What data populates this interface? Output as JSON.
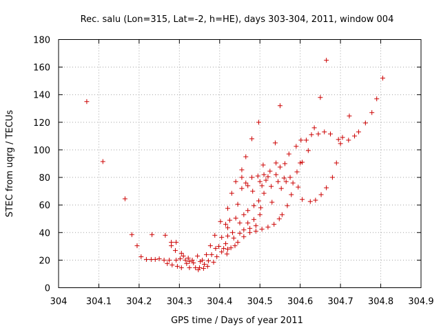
{
  "chart_data": {
    "type": "scatter",
    "title": "Rec. salu (Lon=315, Lat=-2, h=HE), days 303-304, 2011, window 004",
    "xlabel": "GPS time / Days of year 2011",
    "ylabel": "STEC from uqrg / TECUs",
    "xlim": [
      304,
      304.9
    ],
    "ylim": [
      0,
      180
    ],
    "xticks": [
      "304",
      "304.1",
      "304.2",
      "304.3",
      "304.4",
      "304.5",
      "304.6",
      "304.7",
      "304.8",
      "304.9"
    ],
    "yticks": [
      "0",
      "20",
      "40",
      "60",
      "80",
      "100",
      "120",
      "140",
      "160",
      "180"
    ],
    "grid": true,
    "legend": "none",
    "marker": "plus",
    "color": "#cc0000",
    "points": [
      [
        304.07,
        135
      ],
      [
        304.11,
        91.5
      ],
      [
        304.165,
        64.5
      ],
      [
        304.182,
        38.5
      ],
      [
        304.195,
        30.5
      ],
      [
        304.205,
        22.5
      ],
      [
        304.218,
        20.5
      ],
      [
        304.23,
        20.5
      ],
      [
        304.232,
        38.5
      ],
      [
        304.24,
        20.5
      ],
      [
        304.25,
        21
      ],
      [
        304.262,
        20
      ],
      [
        304.265,
        38
      ],
      [
        304.27,
        17.5
      ],
      [
        304.275,
        20
      ],
      [
        304.28,
        30.5
      ],
      [
        304.28,
        33
      ],
      [
        304.282,
        16.5
      ],
      [
        304.29,
        27
      ],
      [
        304.292,
        20
      ],
      [
        304.292,
        33
      ],
      [
        304.295,
        15.5
      ],
      [
        304.302,
        21
      ],
      [
        304.305,
        25
      ],
      [
        304.305,
        14.5
      ],
      [
        304.31,
        23
      ],
      [
        304.315,
        20
      ],
      [
        304.318,
        17.5
      ],
      [
        304.322,
        21.5
      ],
      [
        304.325,
        19
      ],
      [
        304.325,
        14.5
      ],
      [
        304.332,
        20
      ],
      [
        304.335,
        18
      ],
      [
        304.34,
        14.5
      ],
      [
        304.345,
        23
      ],
      [
        304.347,
        13
      ],
      [
        304.35,
        14.5
      ],
      [
        304.352,
        19
      ],
      [
        304.357,
        20
      ],
      [
        304.36,
        14
      ],
      [
        304.362,
        17
      ],
      [
        304.367,
        24
      ],
      [
        304.37,
        15.5
      ],
      [
        304.372,
        19.5
      ],
      [
        304.377,
        30.5
      ],
      [
        304.38,
        24
      ],
      [
        304.385,
        18.5
      ],
      [
        304.388,
        38
      ],
      [
        304.39,
        28.5
      ],
      [
        304.393,
        22.5
      ],
      [
        304.398,
        30
      ],
      [
        304.402,
        48
      ],
      [
        304.405,
        36.5
      ],
      [
        304.405,
        26
      ],
      [
        304.41,
        28.5
      ],
      [
        304.415,
        46
      ],
      [
        304.415,
        32
      ],
      [
        304.418,
        24.5
      ],
      [
        304.42,
        57.5
      ],
      [
        304.42,
        43.5
      ],
      [
        304.42,
        28
      ],
      [
        304.42,
        37.5
      ],
      [
        304.425,
        49
      ],
      [
        304.428,
        29
      ],
      [
        304.43,
        68.5
      ],
      [
        304.432,
        40
      ],
      [
        304.435,
        36
      ],
      [
        304.438,
        30.5
      ],
      [
        304.44,
        50.5
      ],
      [
        304.44,
        77
      ],
      [
        304.445,
        60.5
      ],
      [
        304.445,
        33
      ],
      [
        304.45,
        47
      ],
      [
        304.45,
        39.5
      ],
      [
        304.455,
        85.5
      ],
      [
        304.455,
        80
      ],
      [
        304.455,
        72
      ],
      [
        304.46,
        53
      ],
      [
        304.46,
        42
      ],
      [
        304.46,
        37
      ],
      [
        304.465,
        95
      ],
      [
        304.465,
        76
      ],
      [
        304.47,
        74
      ],
      [
        304.47,
        56
      ],
      [
        304.47,
        47
      ],
      [
        304.475,
        43
      ],
      [
        304.475,
        40
      ],
      [
        304.48,
        108
      ],
      [
        304.48,
        80
      ],
      [
        304.482,
        70
      ],
      [
        304.485,
        59.5
      ],
      [
        304.485,
        49.5
      ],
      [
        304.49,
        45
      ],
      [
        304.49,
        41
      ],
      [
        304.495,
        81
      ],
      [
        304.497,
        120
      ],
      [
        304.497,
        63
      ],
      [
        304.5,
        77
      ],
      [
        304.5,
        53
      ],
      [
        304.502,
        58
      ],
      [
        304.505,
        74
      ],
      [
        304.505,
        42.5
      ],
      [
        304.508,
        89
      ],
      [
        304.51,
        82
      ],
      [
        304.51,
        68.5
      ],
      [
        304.515,
        78
      ],
      [
        304.52,
        80.5
      ],
      [
        304.52,
        44
      ],
      [
        304.525,
        84.5
      ],
      [
        304.528,
        73.5
      ],
      [
        304.53,
        62
      ],
      [
        304.535,
        46
      ],
      [
        304.538,
        105
      ],
      [
        304.54,
        90.5
      ],
      [
        304.54,
        82
      ],
      [
        304.545,
        77
      ],
      [
        304.548,
        50
      ],
      [
        304.55,
        132
      ],
      [
        304.55,
        87.5
      ],
      [
        304.553,
        72
      ],
      [
        304.555,
        53
      ],
      [
        304.56,
        79.5
      ],
      [
        304.562,
        90
      ],
      [
        304.565,
        77
      ],
      [
        304.568,
        59.5
      ],
      [
        304.572,
        97
      ],
      [
        304.575,
        80
      ],
      [
        304.578,
        67.5
      ],
      [
        304.582,
        76
      ],
      [
        304.59,
        102.5
      ],
      [
        304.592,
        84
      ],
      [
        304.595,
        73
      ],
      [
        304.6,
        90.5
      ],
      [
        304.602,
        107
      ],
      [
        304.605,
        64
      ],
      [
        304.605,
        91
      ],
      [
        304.615,
        107
      ],
      [
        304.62,
        99.5
      ],
      [
        304.625,
        62.5
      ],
      [
        304.628,
        111
      ],
      [
        304.635,
        116
      ],
      [
        304.638,
        63.5
      ],
      [
        304.645,
        111.5
      ],
      [
        304.65,
        138
      ],
      [
        304.652,
        67.5
      ],
      [
        304.66,
        113
      ],
      [
        304.665,
        165
      ],
      [
        304.665,
        72.5
      ],
      [
        304.675,
        111.5
      ],
      [
        304.68,
        80
      ],
      [
        304.69,
        90.5
      ],
      [
        304.695,
        107.5
      ],
      [
        304.7,
        104.5
      ],
      [
        304.705,
        109
      ],
      [
        304.72,
        107
      ],
      [
        304.722,
        124.5
      ],
      [
        304.735,
        110
      ],
      [
        304.745,
        113
      ],
      [
        304.762,
        119.5
      ],
      [
        304.778,
        127
      ],
      [
        304.79,
        137
      ],
      [
        304.805,
        152
      ]
    ]
  }
}
